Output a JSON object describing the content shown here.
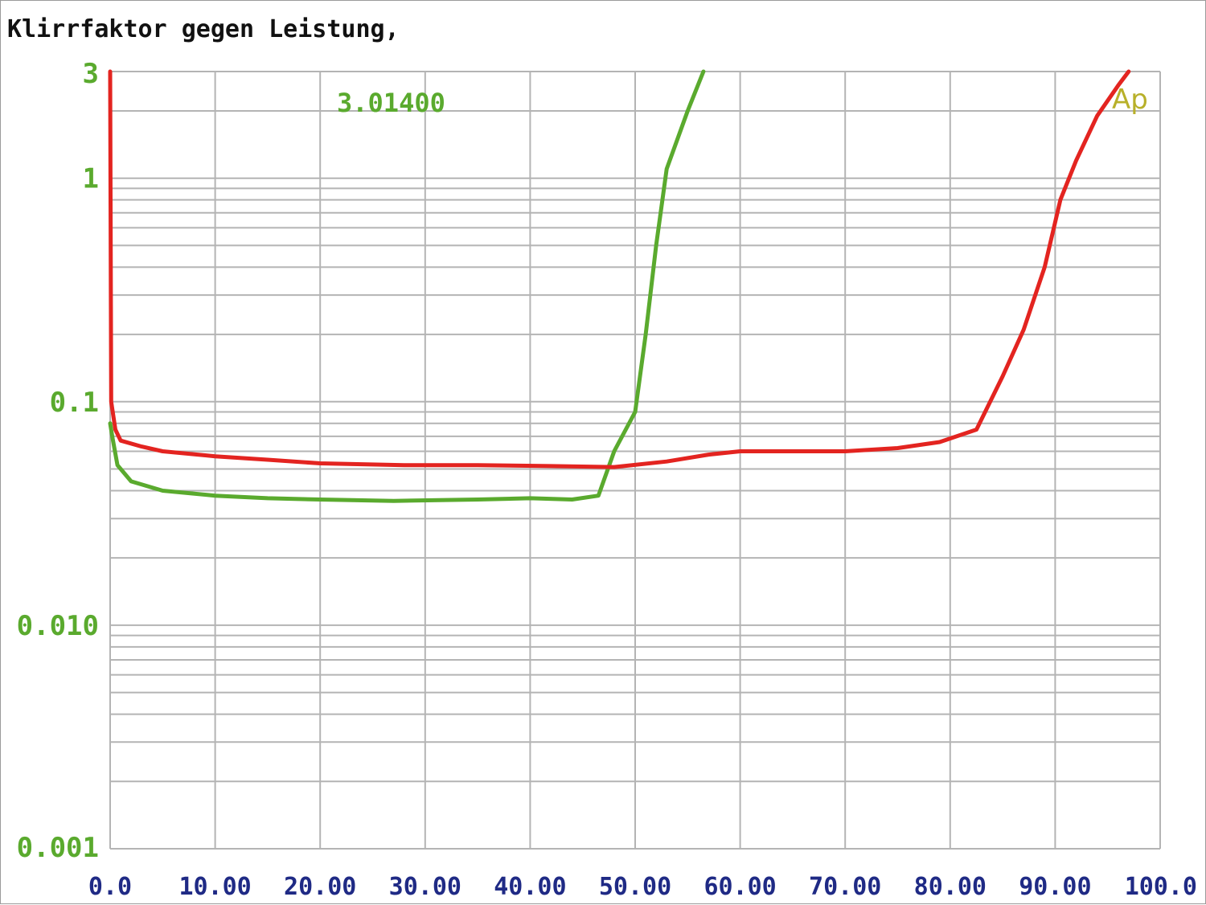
{
  "chart_data": {
    "type": "line",
    "title": "Klirrfaktor gegen Leistung,",
    "xlabel": "",
    "ylabel": "",
    "xlim": [
      0,
      100
    ],
    "ylim": [
      0.001,
      3
    ],
    "yscale": "log",
    "grid": true,
    "x_ticks": [
      "0.0",
      "10.00",
      "20.00",
      "30.00",
      "40.00",
      "50.00",
      "60.00",
      "70.00",
      "80.00",
      "90.00",
      "100.0"
    ],
    "y_ticks": [
      {
        "value": 3,
        "label": "3"
      },
      {
        "value": 1,
        "label": "1"
      },
      {
        "value": 0.1,
        "label": "0.1"
      },
      {
        "value": 0.01,
        "label": "0.010"
      },
      {
        "value": 0.001,
        "label": "0.001"
      }
    ],
    "annotation": "3.01400",
    "logo": "Ap",
    "colors": {
      "green": "#5aaa2e",
      "red": "#e32420",
      "grid": "#b4b4b4",
      "xtick": "#1f2a85",
      "logo": "#b8b02a"
    },
    "series": [
      {
        "color": "#5aaa2e",
        "points": [
          [
            0.0,
            0.08
          ],
          [
            0.2,
            0.07
          ],
          [
            0.7,
            0.052
          ],
          [
            2.0,
            0.044
          ],
          [
            5.0,
            0.04
          ],
          [
            10.0,
            0.038
          ],
          [
            15.0,
            0.037
          ],
          [
            20.0,
            0.0365
          ],
          [
            27.0,
            0.036
          ],
          [
            35.0,
            0.0365
          ],
          [
            40.0,
            0.037
          ],
          [
            44.0,
            0.0365
          ],
          [
            46.5,
            0.038
          ],
          [
            48.0,
            0.06
          ],
          [
            50.0,
            0.09
          ],
          [
            51.0,
            0.2
          ],
          [
            52.0,
            0.5
          ],
          [
            53.0,
            1.1
          ],
          [
            55.0,
            2.0
          ],
          [
            56.5,
            3.0
          ]
        ]
      },
      {
        "color": "#e32420",
        "points": [
          [
            0.0,
            3.0
          ],
          [
            0.1,
            0.1
          ],
          [
            0.5,
            0.075
          ],
          [
            1.0,
            0.067
          ],
          [
            3.0,
            0.063
          ],
          [
            5.0,
            0.06
          ],
          [
            10.0,
            0.057
          ],
          [
            15.0,
            0.055
          ],
          [
            20.0,
            0.053
          ],
          [
            28.0,
            0.052
          ],
          [
            35.0,
            0.052
          ],
          [
            42.0,
            0.0515
          ],
          [
            48.0,
            0.051
          ],
          [
            53.0,
            0.054
          ],
          [
            57.0,
            0.058
          ],
          [
            60.0,
            0.06
          ],
          [
            70.0,
            0.06
          ],
          [
            75.0,
            0.062
          ],
          [
            79.0,
            0.066
          ],
          [
            82.5,
            0.075
          ],
          [
            85.0,
            0.13
          ],
          [
            87.0,
            0.21
          ],
          [
            89.0,
            0.4
          ],
          [
            90.5,
            0.8
          ],
          [
            92.0,
            1.2
          ],
          [
            94.0,
            1.9
          ],
          [
            96.0,
            2.6
          ],
          [
            97.0,
            3.0
          ]
        ]
      }
    ]
  }
}
